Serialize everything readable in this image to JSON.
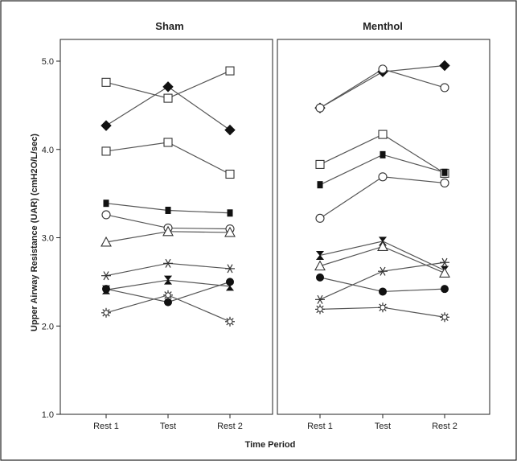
{
  "chart_data": {
    "type": "line",
    "ylabel": "Upper Airway Resistance (UAR) (cmH2O/L/sec)",
    "xlabel": "Time Period",
    "ylim": [
      1.0,
      5.2
    ],
    "yticks": [
      "1.0",
      "2.0",
      "3.0",
      "4.0",
      "5.0"
    ],
    "categories": [
      "Rest 1",
      "Test",
      "Rest 2"
    ],
    "grid": false,
    "legend": "none",
    "panels": [
      {
        "title": "Sham",
        "series": [
          {
            "marker": "diamond-filled",
            "values": [
              4.27,
              4.71,
              4.22
            ]
          },
          {
            "marker": "square-open",
            "values": [
              4.76,
              4.58,
              4.89
            ]
          },
          {
            "marker": "square-open",
            "values": [
              3.98,
              4.08,
              3.72
            ]
          },
          {
            "marker": "square-half",
            "values": [
              3.39,
              3.31,
              3.28
            ]
          },
          {
            "marker": "circle-open",
            "values": [
              3.26,
              3.11,
              3.1
            ]
          },
          {
            "marker": "triangle-open",
            "values": [
              2.95,
              3.07,
              3.06
            ]
          },
          {
            "marker": "asterisk",
            "values": [
              2.57,
              2.71,
              2.65
            ]
          },
          {
            "marker": "hourglass",
            "values": [
              2.41,
              2.52,
              2.45
            ]
          },
          {
            "marker": "circle-filled",
            "values": [
              2.42,
              2.27,
              2.5
            ]
          },
          {
            "marker": "star-burst",
            "values": [
              2.15,
              2.35,
              2.05
            ]
          }
        ]
      },
      {
        "title": "Menthol",
        "series": [
          {
            "marker": "diamond-filled",
            "values": [
              4.47,
              4.88,
              4.95
            ]
          },
          {
            "marker": "circle-open",
            "values": [
              4.47,
              4.91,
              4.7
            ]
          },
          {
            "marker": "square-open",
            "values": [
              3.83,
              4.17,
              3.73
            ]
          },
          {
            "marker": "square-half",
            "values": [
              3.6,
              3.94,
              3.74
            ]
          },
          {
            "marker": "circle-open",
            "values": [
              3.22,
              3.69,
              3.62
            ]
          },
          {
            "marker": "hourglass",
            "values": [
              2.8,
              2.96,
              2.63
            ]
          },
          {
            "marker": "triangle-open",
            "values": [
              2.68,
              2.9,
              2.6
            ]
          },
          {
            "marker": "asterisk",
            "values": [
              2.3,
              2.62,
              2.72
            ]
          },
          {
            "marker": "circle-filled",
            "values": [
              2.55,
              2.39,
              2.42
            ]
          },
          {
            "marker": "star-burst",
            "values": [
              2.19,
              2.21,
              2.1
            ]
          }
        ]
      }
    ]
  }
}
